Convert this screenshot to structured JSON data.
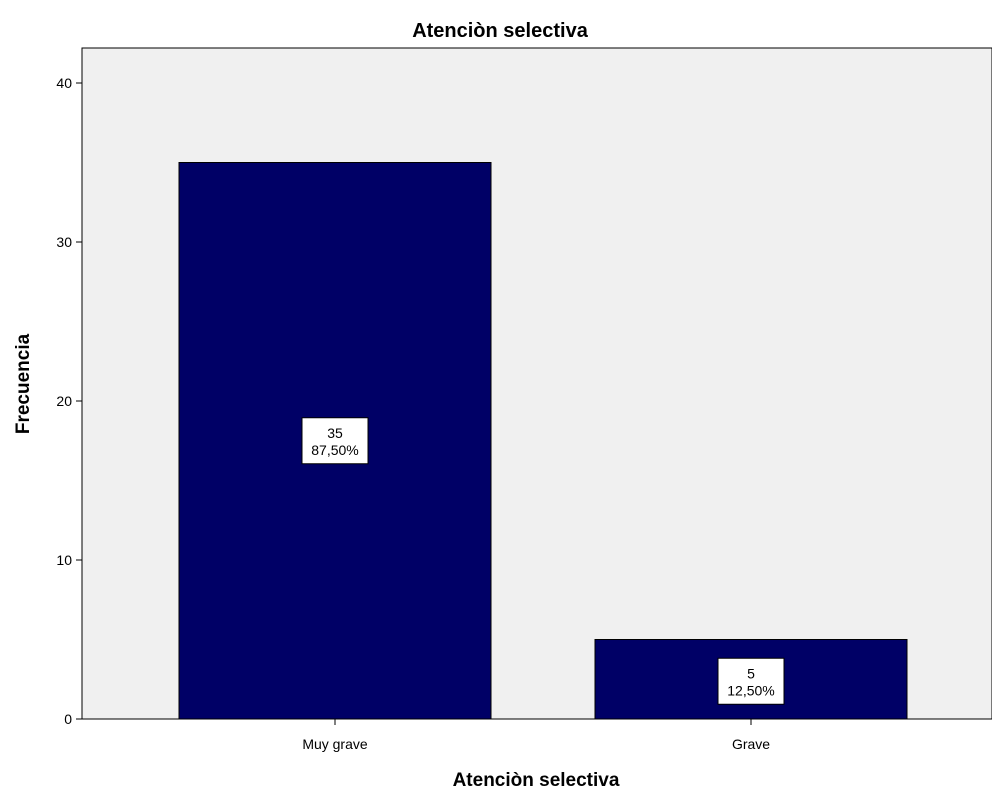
{
  "chart_data": {
    "type": "bar",
    "title": "Atenciòn selectiva",
    "xlabel": "Atenciòn selectiva",
    "ylabel": "Frecuencia",
    "categories": [
      "Muy grave",
      "Grave"
    ],
    "values": [
      35,
      5
    ],
    "percent_labels": [
      "87,50%",
      "12,50%"
    ],
    "ylim": [
      0,
      42
    ],
    "yticks": [
      0,
      10,
      20,
      30,
      40
    ],
    "grid": false,
    "bar_color": "#000066",
    "plot_background": "#f0f0f0"
  }
}
